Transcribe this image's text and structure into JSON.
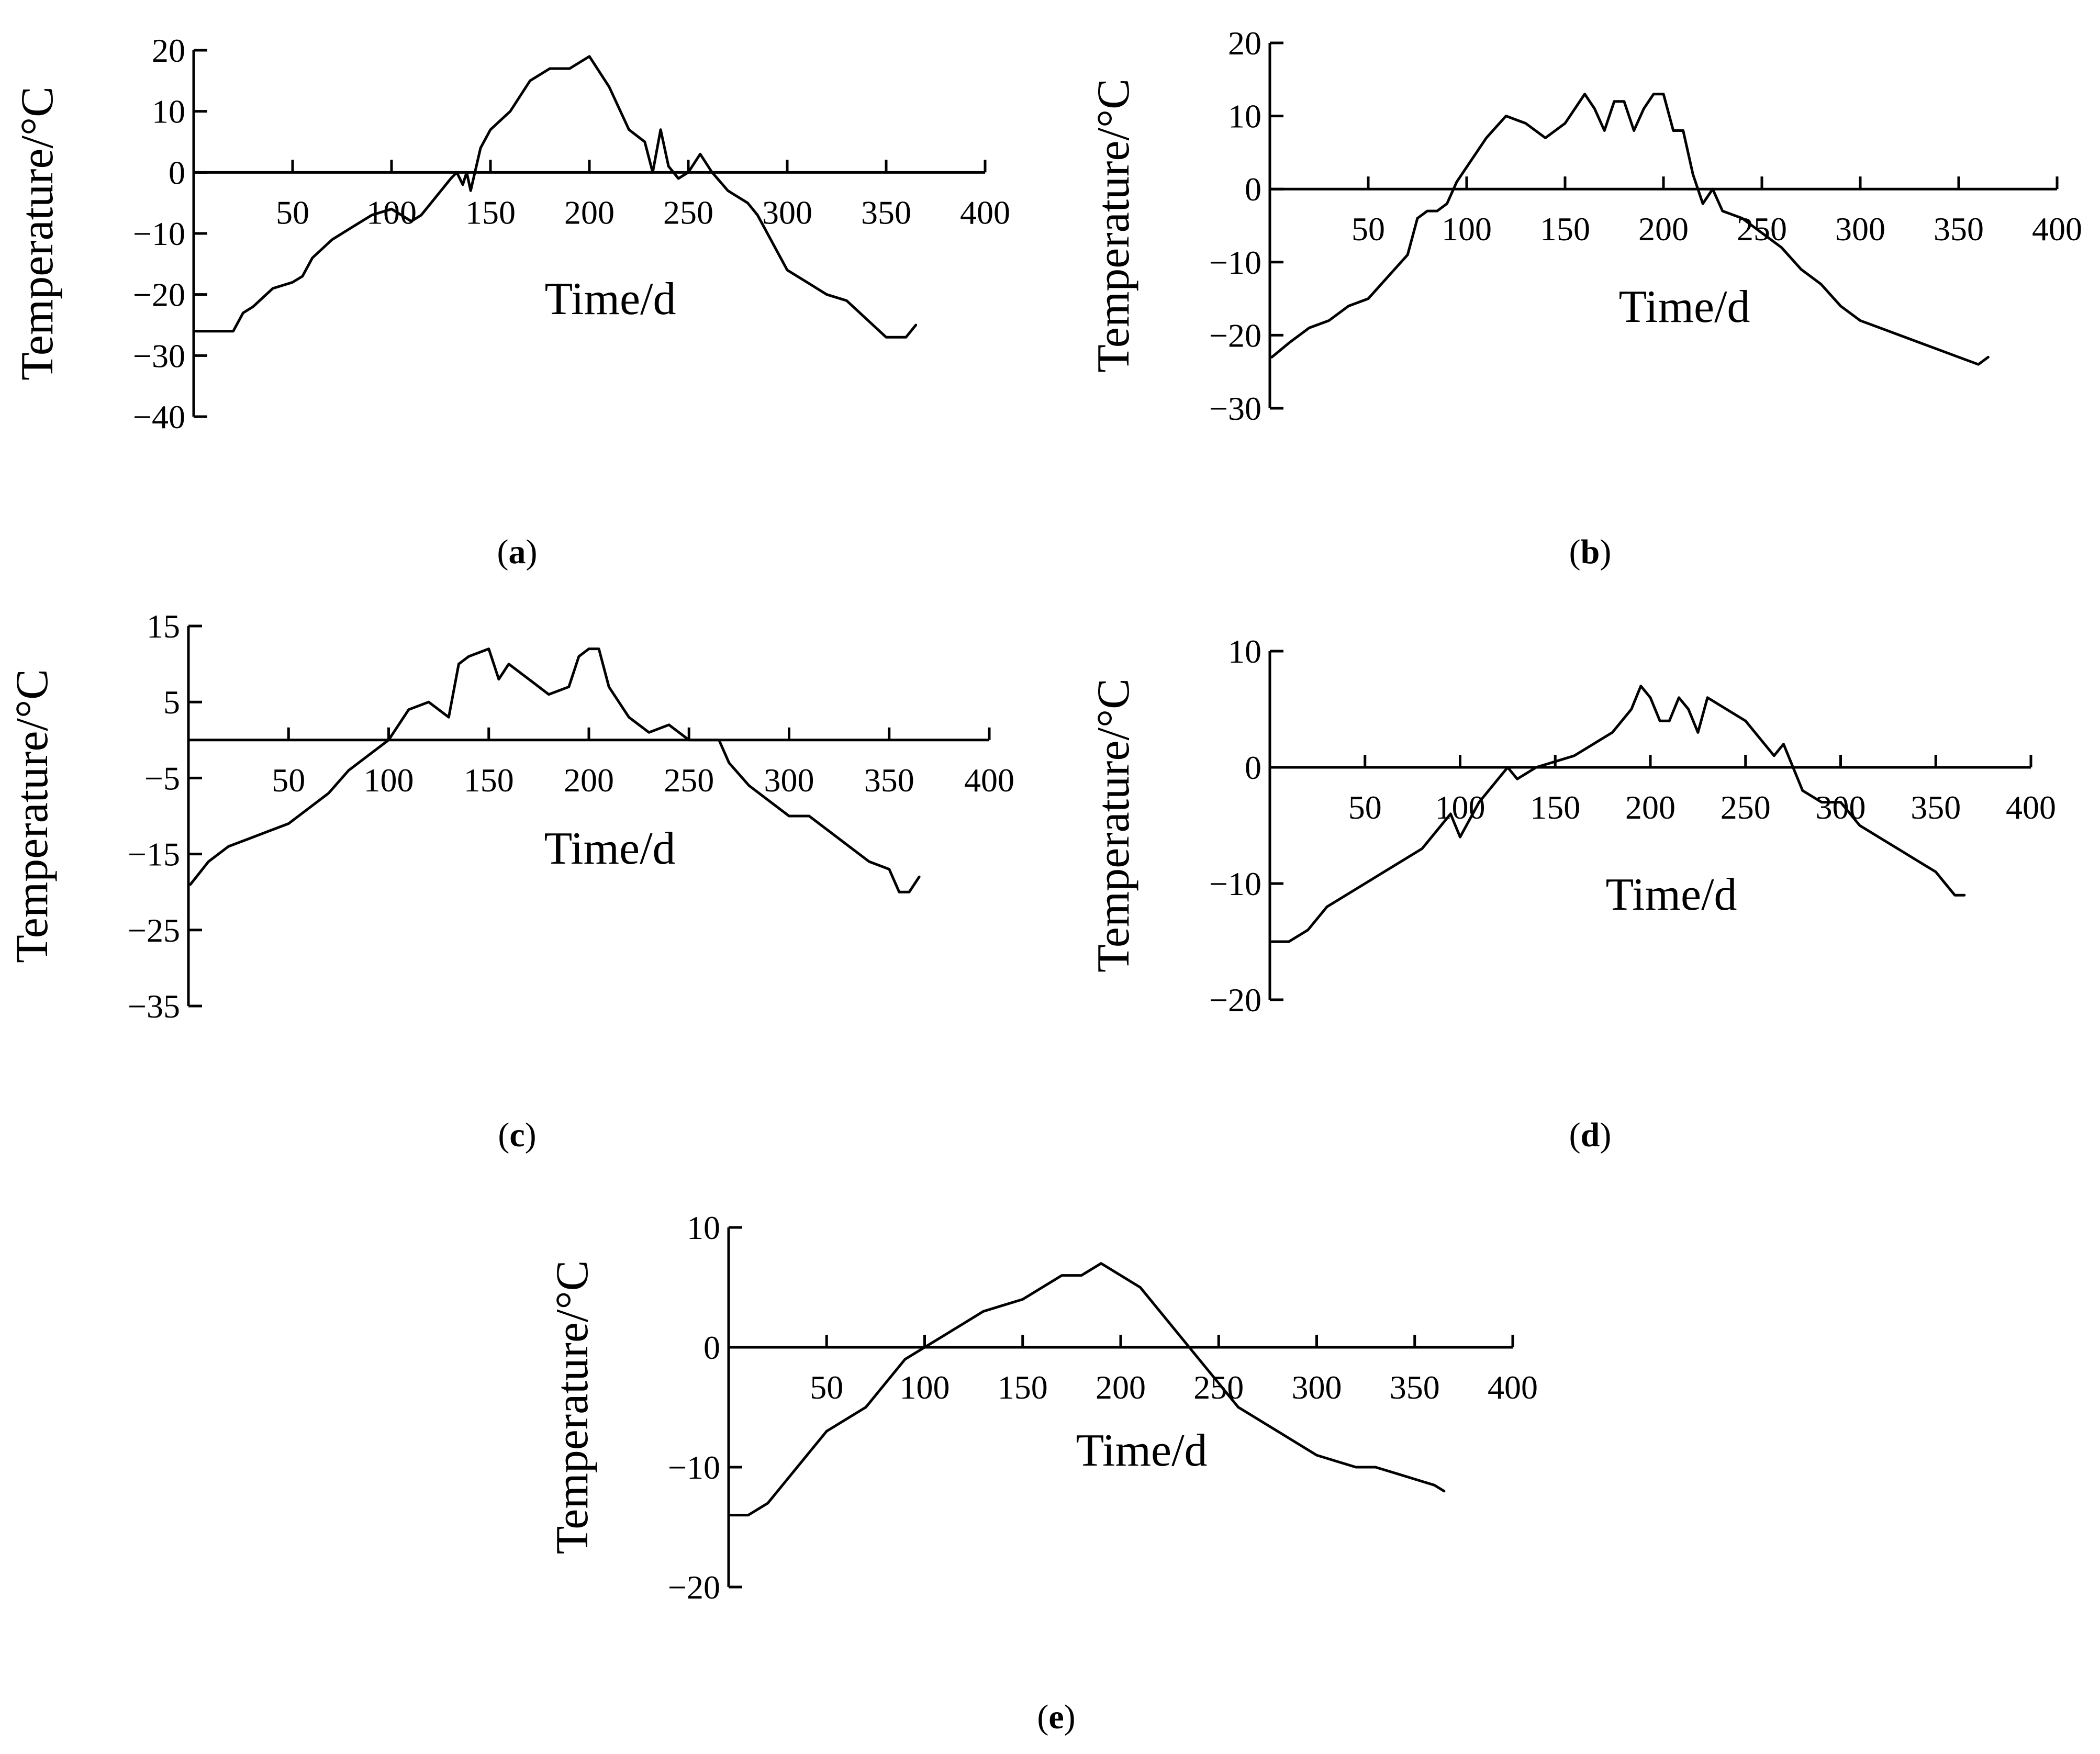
{
  "figure": {
    "line_color": "#000000",
    "background": "#ffffff"
  },
  "chart_data": [
    {
      "panel": "a",
      "caption_letter": "a",
      "type": "line",
      "xlabel": "Time/d",
      "ylabel": "Temperature/°C",
      "xlim": [
        0,
        400
      ],
      "ylim": [
        -40,
        20
      ],
      "xticks": [
        50,
        100,
        150,
        200,
        250,
        300,
        350,
        400
      ],
      "yticks": [
        20,
        10,
        0,
        -10,
        -20,
        -30,
        -40
      ],
      "grid": false,
      "series": [
        {
          "x": [
            1,
            10,
            20,
            25,
            30,
            40,
            50,
            55,
            60,
            70,
            80,
            90,
            100,
            110,
            115,
            120,
            125,
            130,
            133,
            136,
            138,
            140,
            145,
            150,
            160,
            170,
            180,
            190,
            200,
            210,
            220,
            228,
            232,
            236,
            240,
            245,
            250,
            256,
            262,
            270,
            280,
            285,
            290,
            300,
            310,
            320,
            330,
            340,
            350,
            360,
            365
          ],
          "y": [
            -26,
            -26,
            -26,
            -23,
            -22,
            -19,
            -18,
            -17,
            -14,
            -11,
            -9,
            -7,
            -6,
            -8,
            -7,
            -5,
            -3,
            -1,
            0,
            -2,
            0,
            -3,
            4,
            7,
            10,
            15,
            17,
            17,
            19,
            14,
            7,
            5,
            0,
            7,
            1,
            -1,
            0,
            3,
            0,
            -3,
            -5,
            -7,
            -10,
            -16,
            -18,
            -20,
            -21,
            -24,
            -27,
            -27,
            -25
          ]
        }
      ]
    },
    {
      "panel": "b",
      "caption_letter": "b",
      "type": "line",
      "xlabel": "Time/d",
      "ylabel": "Temperature/°C",
      "xlim": [
        0,
        400
      ],
      "ylim": [
        -30,
        20
      ],
      "xticks": [
        50,
        100,
        150,
        200,
        250,
        300,
        350,
        400
      ],
      "yticks": [
        20,
        10,
        0,
        -10,
        -20,
        -30
      ],
      "grid": false,
      "series": [
        {
          "x": [
            1,
            10,
            20,
            30,
            40,
            50,
            60,
            70,
            75,
            80,
            85,
            90,
            95,
            100,
            110,
            120,
            130,
            140,
            150,
            160,
            165,
            170,
            175,
            180,
            185,
            190,
            195,
            200,
            205,
            210,
            215,
            220,
            225,
            230,
            240,
            250,
            260,
            270,
            280,
            290,
            300,
            310,
            320,
            330,
            340,
            350,
            360,
            365
          ],
          "y": [
            -23,
            -21,
            -19,
            -18,
            -16,
            -15,
            -12,
            -9,
            -4,
            -3,
            -3,
            -2,
            1,
            3,
            7,
            10,
            9,
            7,
            9,
            13,
            11,
            8,
            12,
            12,
            8,
            11,
            13,
            13,
            8,
            8,
            2,
            -2,
            0,
            -3,
            -4,
            -6,
            -8,
            -11,
            -13,
            -16,
            -18,
            -19,
            -20,
            -21,
            -22,
            -23,
            -24,
            -23
          ]
        }
      ]
    },
    {
      "panel": "c",
      "caption_letter": "c",
      "type": "line",
      "xlabel": "Time/d",
      "ylabel": "Temperature/°C",
      "xlim": [
        0,
        400
      ],
      "ylim": [
        -35,
        15
      ],
      "xticks": [
        50,
        100,
        150,
        200,
        250,
        300,
        350,
        400
      ],
      "yticks": [
        15,
        5,
        -5,
        -15,
        -25,
        -35
      ],
      "grid": false,
      "series": [
        {
          "x": [
            1,
            10,
            20,
            30,
            40,
            50,
            60,
            70,
            80,
            90,
            100,
            110,
            120,
            130,
            135,
            140,
            150,
            155,
            160,
            170,
            180,
            190,
            195,
            200,
            205,
            210,
            215,
            220,
            230,
            240,
            250,
            255,
            260,
            265,
            270,
            280,
            290,
            300,
            310,
            320,
            330,
            340,
            350,
            355,
            360,
            365
          ],
          "y": [
            -19,
            -16,
            -14,
            -13,
            -12,
            -11,
            -9,
            -7,
            -4,
            -2,
            0,
            4,
            5,
            3,
            10,
            11,
            12,
            8,
            10,
            8,
            6,
            7,
            11,
            12,
            12,
            7,
            5,
            3,
            1,
            2,
            0,
            0,
            0,
            0,
            -3,
            -6,
            -8,
            -10,
            -10,
            -12,
            -14,
            -16,
            -17,
            -20,
            -20,
            -18
          ]
        }
      ]
    },
    {
      "panel": "d",
      "caption_letter": "d",
      "type": "line",
      "xlabel": "Time/d",
      "ylabel": "Temperature/°C",
      "xlim": [
        0,
        400
      ],
      "ylim": [
        -20,
        10
      ],
      "xticks": [
        50,
        100,
        150,
        200,
        250,
        300,
        350,
        400
      ],
      "yticks": [
        10,
        0,
        -10,
        -20
      ],
      "grid": false,
      "series": [
        {
          "x": [
            1,
            10,
            20,
            30,
            40,
            50,
            60,
            70,
            80,
            90,
            95,
            100,
            110,
            120,
            125,
            130,
            140,
            150,
            160,
            170,
            180,
            190,
            195,
            200,
            205,
            210,
            215,
            220,
            225,
            230,
            240,
            250,
            260,
            265,
            270,
            275,
            280,
            290,
            300,
            310,
            320,
            330,
            340,
            350,
            355,
            360,
            365
          ],
          "y": [
            -15,
            -15,
            -14,
            -12,
            -11,
            -10,
            -9,
            -8,
            -7,
            -5,
            -4,
            -6,
            -3,
            -1,
            0,
            -1,
            0,
            0.5,
            1,
            2,
            3,
            5,
            7,
            6,
            4,
            4,
            6,
            5,
            3,
            6,
            5,
            4,
            2,
            1,
            2,
            0,
            -2,
            -3,
            -3,
            -5,
            -6,
            -7,
            -8,
            -9,
            -10,
            -11,
            -11
          ]
        }
      ]
    },
    {
      "panel": "e",
      "caption_letter": "e",
      "type": "line",
      "xlabel": "Time/d",
      "ylabel": "Temperature/°C",
      "xlim": [
        0,
        400
      ],
      "ylim": [
        -20,
        10
      ],
      "xticks": [
        50,
        100,
        150,
        200,
        250,
        300,
        350,
        400
      ],
      "yticks": [
        10,
        0,
        -10,
        -20
      ],
      "grid": false,
      "series": [
        {
          "x": [
            1,
            10,
            20,
            30,
            40,
            50,
            60,
            70,
            80,
            90,
            100,
            110,
            120,
            130,
            140,
            150,
            160,
            170,
            180,
            190,
            200,
            210,
            220,
            230,
            240,
            250,
            260,
            270,
            280,
            290,
            300,
            310,
            320,
            330,
            340,
            350,
            360,
            365
          ],
          "y": [
            -14,
            -14,
            -13,
            -11,
            -9,
            -7,
            -6,
            -5,
            -3,
            -1,
            0,
            1,
            2,
            3,
            3.5,
            4,
            5,
            6,
            6,
            7,
            6,
            5,
            3,
            1,
            -1,
            -3,
            -5,
            -6,
            -7,
            -8,
            -9,
            -9.5,
            -10,
            -10,
            -10.5,
            -11,
            -11.5,
            -12
          ]
        }
      ]
    }
  ]
}
